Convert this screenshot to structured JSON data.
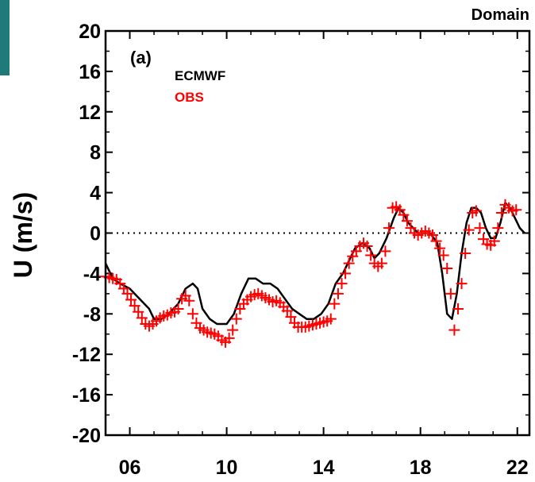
{
  "header_title": "Domain",
  "chart_data": {
    "type": "line",
    "panel_label": "(a)",
    "ylabel": "U (m/s)",
    "xlabel": "",
    "xlim": [
      5,
      22.5
    ],
    "ylim": [
      -20,
      20
    ],
    "x_ticks": [
      6,
      10,
      14,
      18,
      22
    ],
    "x_tick_labels": [
      "06",
      "10",
      "14",
      "18",
      "22"
    ],
    "y_ticks": [
      20,
      16,
      12,
      8,
      4,
      0,
      -4,
      -8,
      -12,
      -16,
      -20
    ],
    "y_tick_labels": [
      "20",
      "16",
      "12",
      "8",
      "4",
      "0",
      "-4",
      "-8",
      "-12",
      "-16",
      "-20"
    ],
    "zero_line": {
      "y": 0,
      "style": "dotted"
    },
    "legend": [
      {
        "label": "ECMWF",
        "color": "#000000"
      },
      {
        "label": "OBS",
        "color": "#ff0000"
      }
    ],
    "series": [
      {
        "name": "ECMWF",
        "style": "line",
        "color": "#000000",
        "x": [
          5.0,
          5.3,
          5.6,
          6.0,
          6.4,
          6.8,
          7.0,
          7.3,
          7.6,
          8.0,
          8.3,
          8.6,
          8.8,
          9.0,
          9.3,
          9.6,
          10.0,
          10.3,
          10.6,
          10.9,
          11.2,
          11.5,
          11.8,
          12.1,
          12.4,
          12.7,
          13.0,
          13.3,
          13.6,
          13.9,
          14.2,
          14.5,
          14.8,
          15.0,
          15.3,
          15.6,
          15.9,
          16.1,
          16.3,
          16.6,
          16.9,
          17.1,
          17.3,
          17.5,
          17.7,
          17.9,
          18.1,
          18.4,
          18.7,
          18.9,
          19.1,
          19.3,
          19.5,
          19.7,
          19.9,
          20.1,
          20.3,
          20.5,
          20.7,
          20.9,
          21.1,
          21.3,
          21.5,
          21.7,
          21.9,
          22.1,
          22.3
        ],
        "y": [
          -3.0,
          -4.5,
          -5.0,
          -5.5,
          -6.5,
          -7.5,
          -8.5,
          -8.5,
          -8.0,
          -7.0,
          -5.5,
          -5.0,
          -5.5,
          -7.5,
          -8.5,
          -9.0,
          -9.0,
          -8.0,
          -6.0,
          -4.5,
          -4.5,
          -5.0,
          -5.0,
          -5.5,
          -6.5,
          -7.5,
          -8.0,
          -8.5,
          -8.5,
          -8.0,
          -7.0,
          -5.0,
          -4.0,
          -3.0,
          -1.5,
          -1.0,
          -1.5,
          -2.5,
          -2.0,
          -0.5,
          1.5,
          2.5,
          2.0,
          1.0,
          0.5,
          0.0,
          0.0,
          0.0,
          -1.0,
          -4.0,
          -8.0,
          -8.5,
          -6.0,
          -2.0,
          1.0,
          2.5,
          2.5,
          2.0,
          0.5,
          -0.5,
          -0.5,
          1.0,
          3.0,
          2.5,
          1.5,
          0.5,
          0.0
        ]
      },
      {
        "name": "OBS",
        "style": "plus",
        "color": "#ff0000",
        "x": [
          5.0,
          5.15,
          5.3,
          5.45,
          5.6,
          5.75,
          5.9,
          6.05,
          6.2,
          6.35,
          6.5,
          6.65,
          6.8,
          6.95,
          7.1,
          7.25,
          7.4,
          7.55,
          7.7,
          7.85,
          8.0,
          8.15,
          8.3,
          8.45,
          8.6,
          8.75,
          8.9,
          9.05,
          9.2,
          9.35,
          9.5,
          9.65,
          9.8,
          9.95,
          10.1,
          10.25,
          10.4,
          10.55,
          10.7,
          10.85,
          11.0,
          11.15,
          11.3,
          11.45,
          11.6,
          11.75,
          11.9,
          12.05,
          12.2,
          12.35,
          12.5,
          12.65,
          12.8,
          12.95,
          13.1,
          13.25,
          13.4,
          13.55,
          13.7,
          13.85,
          14.0,
          14.15,
          14.3,
          14.45,
          14.6,
          14.75,
          14.9,
          15.05,
          15.2,
          15.35,
          15.5,
          15.65,
          15.8,
          15.95,
          16.1,
          16.25,
          16.4,
          16.55,
          16.7,
          16.85,
          17.0,
          17.15,
          17.3,
          17.45,
          17.6,
          17.75,
          17.9,
          18.05,
          18.2,
          18.35,
          18.5,
          18.65,
          18.8,
          18.95,
          19.1,
          19.25,
          19.4,
          19.55,
          19.7,
          19.85,
          20.0,
          20.15,
          20.3,
          20.45,
          20.6,
          20.75,
          20.9,
          21.05,
          21.2,
          21.35,
          21.5,
          21.65,
          21.8,
          21.95
        ],
        "y": [
          -4.3,
          -4.4,
          -4.5,
          -4.6,
          -5.0,
          -5.5,
          -6.0,
          -6.6,
          -7.2,
          -7.8,
          -8.4,
          -9.0,
          -9.2,
          -9.0,
          -8.7,
          -8.4,
          -8.2,
          -8.1,
          -7.9,
          -7.8,
          -7.5,
          -6.5,
          -6.2,
          -6.7,
          -8.0,
          -8.9,
          -9.4,
          -9.6,
          -9.8,
          -9.9,
          -10.0,
          -10.2,
          -10.6,
          -10.8,
          -10.4,
          -9.6,
          -8.5,
          -7.5,
          -7.0,
          -6.6,
          -6.3,
          -6.1,
          -6.0,
          -6.2,
          -6.4,
          -6.6,
          -6.8,
          -6.7,
          -6.9,
          -7.3,
          -7.7,
          -8.3,
          -8.9,
          -9.3,
          -9.3,
          -9.3,
          -9.2,
          -9.1,
          -9.0,
          -8.9,
          -8.8,
          -8.7,
          -8.5,
          -7.0,
          -6.0,
          -5.0,
          -4.0,
          -3.0,
          -2.3,
          -1.8,
          -1.3,
          -1.0,
          -1.3,
          -2.2,
          -3.0,
          -3.3,
          -3.0,
          -1.8,
          0.5,
          2.5,
          2.6,
          2.3,
          1.8,
          1.2,
          0.5,
          0.0,
          -0.2,
          0.0,
          0.2,
          0.0,
          -0.2,
          -0.8,
          -1.5,
          -2.2,
          -3.5,
          -6.0,
          -9.6,
          -7.5,
          -5.0,
          -2.0,
          0.3,
          2.0,
          2.2,
          0.5,
          -0.6,
          -1.1,
          -1.2,
          -0.8,
          0.5,
          2.0,
          2.8,
          2.5,
          2.2,
          2.3
        ]
      }
    ]
  }
}
